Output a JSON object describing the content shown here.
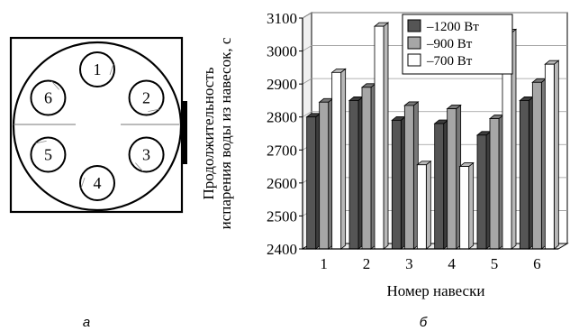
{
  "panel_a": {
    "caption": "а",
    "positions": [
      "1",
      "2",
      "3",
      "4",
      "5",
      "6"
    ]
  },
  "panel_b": {
    "caption": "б"
  },
  "chart_data": {
    "type": "bar",
    "categories": [
      "1",
      "2",
      "3",
      "4",
      "5",
      "6"
    ],
    "series": [
      {
        "name": "1200 Вт",
        "values": [
          2800,
          2850,
          2790,
          2780,
          2745,
          2850
        ],
        "color": "#555555"
      },
      {
        "name": "900 Вт",
        "values": [
          2845,
          2890,
          2835,
          2825,
          2795,
          2905
        ],
        "color": "#a6a6a6"
      },
      {
        "name": "700 Вт",
        "values": [
          2935,
          3075,
          2655,
          2650,
          3055,
          2960
        ],
        "color": "#ffffff"
      }
    ],
    "xlabel": "Номер навески",
    "ylabel": "Продолжительность испарения воды из навесок, с",
    "ylabel_lines": [
      "Продолжительность",
      "испарения воды из навесок, с"
    ],
    "ylim": [
      2400,
      3100
    ],
    "yticks": [
      "2400",
      "2500",
      "2600",
      "2700",
      "2800",
      "2900",
      "3000",
      "3100"
    ],
    "legend_prefix": "–",
    "legend_position": "top-center",
    "grid": true
  }
}
